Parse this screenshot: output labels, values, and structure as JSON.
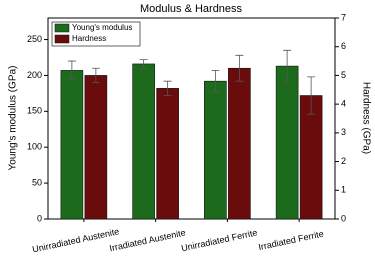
{
  "chart_data": {
    "type": "bar",
    "title": "Modulus & Hardness",
    "categories": [
      "Unirradiated Austenite",
      "Irradiated Austenite",
      "Unirradiated Ferrite",
      "Irradiated Ferrite"
    ],
    "series": [
      {
        "name": "Young's modulus",
        "color": "#1c6b1c",
        "values": [
          207,
          216,
          192,
          213
        ],
        "errors": [
          13,
          6,
          15,
          22
        ]
      },
      {
        "name": "Hardness",
        "color": "#6a0c0c",
        "axis": "y2",
        "values": [
          5.0,
          4.55,
          5.25,
          4.3
        ],
        "errors": [
          0.25,
          0.25,
          0.45,
          0.65
        ]
      }
    ],
    "ylabel": "Young's modulus (GPa)",
    "y2label": "Hardness (GPa)",
    "ylim": [
      0,
      280
    ],
    "yticks": [
      0,
      50,
      100,
      150,
      200,
      250
    ],
    "y2lim": [
      0,
      7
    ],
    "y2ticks": [
      0,
      1,
      2,
      3,
      4,
      5,
      6,
      7
    ],
    "legend": "upper left"
  }
}
